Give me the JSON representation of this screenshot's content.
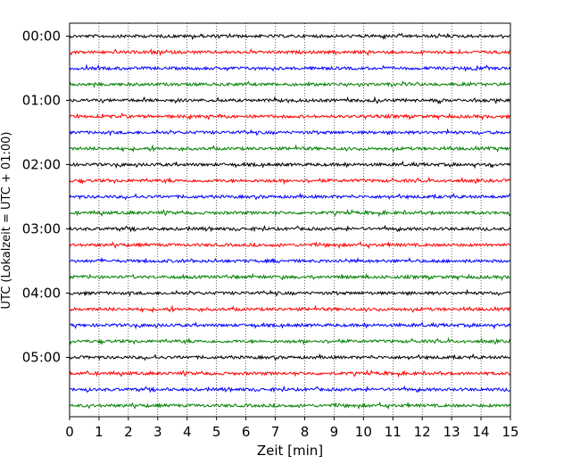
{
  "chart_data": {
    "type": "line",
    "title": "",
    "xlabel": "Zeit  [min]",
    "ylabel": "UTC (Lokalzeit = UTC + 01:00)",
    "xlim": [
      0,
      15
    ],
    "x_ticks": [
      "0",
      "1",
      "2",
      "3",
      "4",
      "5",
      "6",
      "7",
      "8",
      "9",
      "10",
      "11",
      "12",
      "13",
      "14",
      "15"
    ],
    "y_ticks": [
      "00:00",
      "01:00",
      "02:00",
      "03:00",
      "04:00",
      "05:00"
    ],
    "grid": "vertical dotted lines at each minute",
    "trace_interval_min": 15,
    "trace_colors": [
      "#000000",
      "#ff0000",
      "#0000ff",
      "#008000"
    ],
    "series": [
      {
        "start": "00:00",
        "color": "#000000"
      },
      {
        "start": "00:15",
        "color": "#ff0000"
      },
      {
        "start": "00:30",
        "color": "#0000ff"
      },
      {
        "start": "00:45",
        "color": "#008000"
      },
      {
        "start": "01:00",
        "color": "#000000"
      },
      {
        "start": "01:15",
        "color": "#ff0000"
      },
      {
        "start": "01:30",
        "color": "#0000ff"
      },
      {
        "start": "01:45",
        "color": "#008000"
      },
      {
        "start": "02:00",
        "color": "#000000"
      },
      {
        "start": "02:15",
        "color": "#ff0000"
      },
      {
        "start": "02:30",
        "color": "#0000ff"
      },
      {
        "start": "02:45",
        "color": "#008000"
      },
      {
        "start": "03:00",
        "color": "#000000"
      },
      {
        "start": "03:15",
        "color": "#ff0000"
      },
      {
        "start": "03:30",
        "color": "#0000ff"
      },
      {
        "start": "03:45",
        "color": "#008000"
      },
      {
        "start": "04:00",
        "color": "#000000"
      },
      {
        "start": "04:15",
        "color": "#ff0000"
      },
      {
        "start": "04:30",
        "color": "#0000ff"
      },
      {
        "start": "04:45",
        "color": "#008000"
      },
      {
        "start": "05:00",
        "color": "#000000"
      },
      {
        "start": "05:15",
        "color": "#ff0000"
      },
      {
        "start": "05:30",
        "color": "#0000ff"
      },
      {
        "start": "05:45",
        "color": "#008000"
      }
    ]
  }
}
